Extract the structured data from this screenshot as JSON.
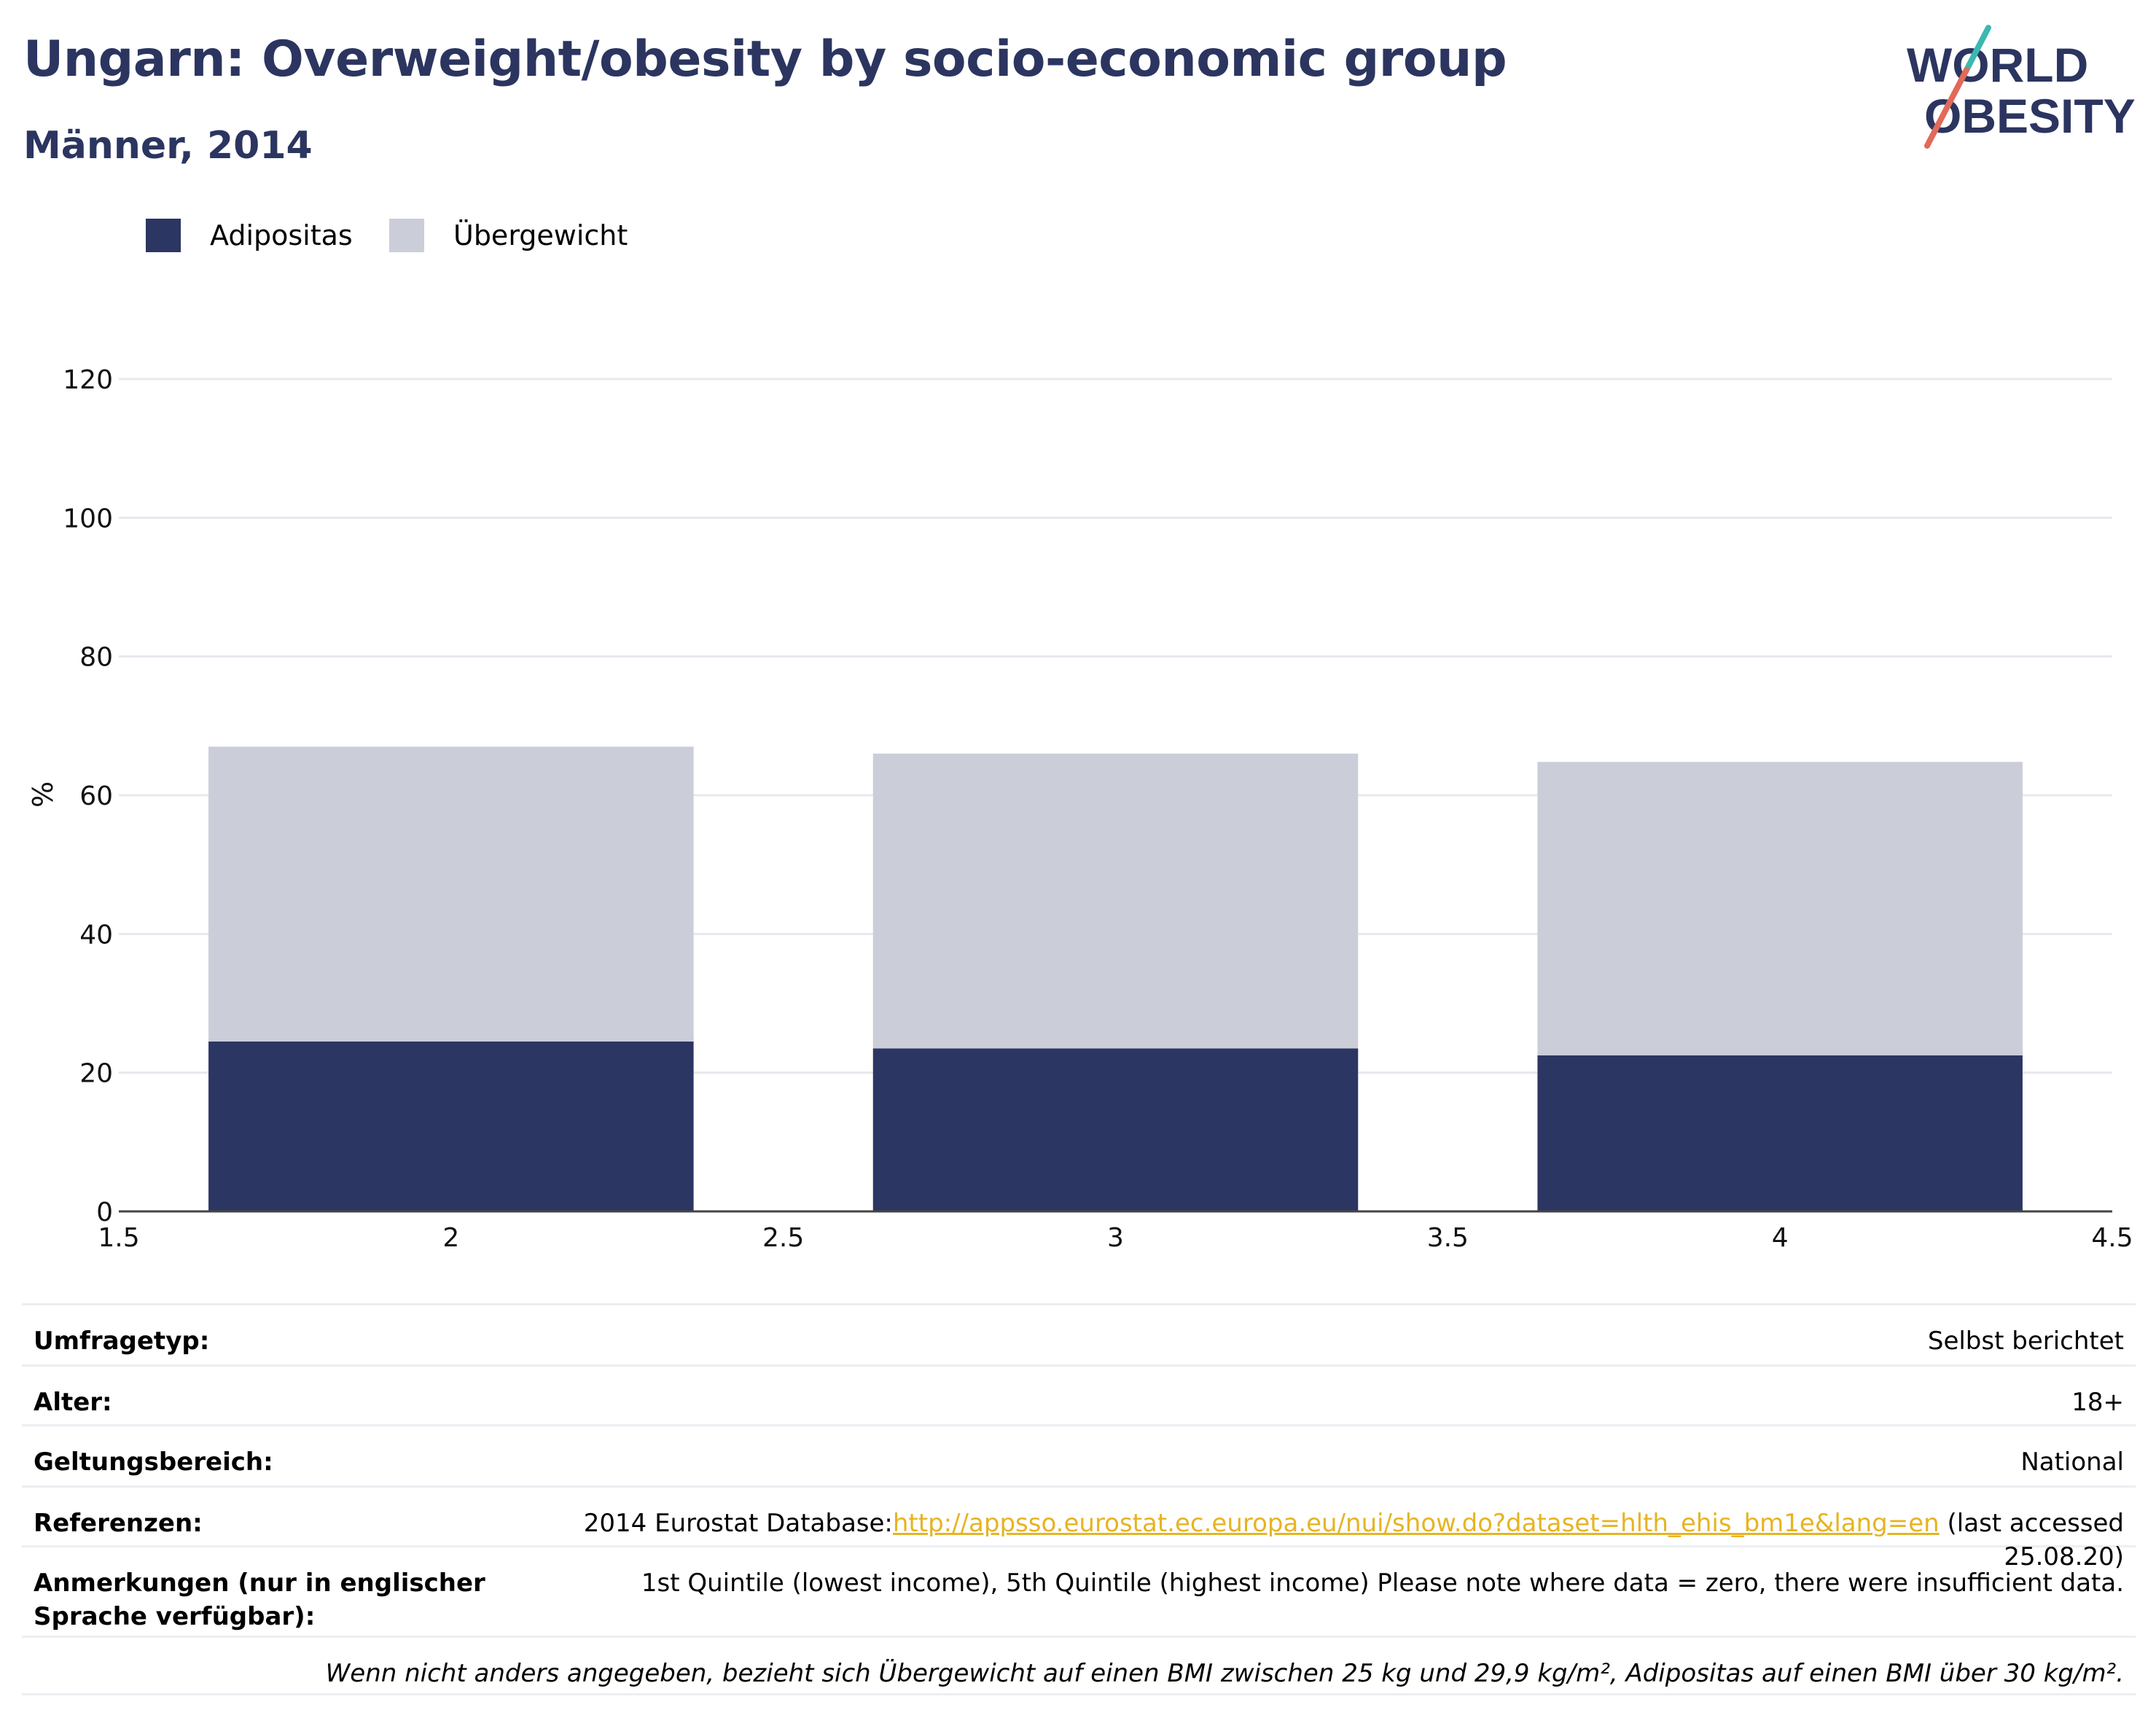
{
  "header": {
    "title": "Ungarn: Overweight/obesity by socio-economic group",
    "subtitle": "Männer, 2014"
  },
  "logo": {
    "line1": "WORLD",
    "line2": "OBESITY",
    "primary_color": "#2b3560",
    "accent_teal": "#3bb8b0",
    "accent_coral": "#e26a5a"
  },
  "legend": [
    {
      "label": "Adipositas",
      "color": "#2b3663"
    },
    {
      "label": "Übergewicht",
      "color": "#cbcdd8"
    }
  ],
  "chart_data": {
    "type": "bar",
    "stacked": true,
    "x": [
      2,
      3,
      4
    ],
    "series": [
      {
        "name": "Adipositas",
        "values": [
          24.5,
          23.5,
          22.5
        ],
        "color": "#2b3663"
      },
      {
        "name": "Übergewicht",
        "values": [
          42.5,
          42.5,
          42.3
        ],
        "color": "#cbcdd8"
      }
    ],
    "xlim": [
      1.5,
      4.5
    ],
    "ylim": [
      0,
      120
    ],
    "xticks": [
      "1.5",
      "2",
      "2.5",
      "3",
      "3.5",
      "4",
      "4.5"
    ],
    "yticks": [
      "0",
      "20",
      "40",
      "60",
      "80",
      "100",
      "120"
    ],
    "ylabel": "%",
    "xlabel": "",
    "grid": true,
    "legend_position": "top-left"
  },
  "info": {
    "survey_type": {
      "label": "Umfragetyp:",
      "value": "Selbst berichtet"
    },
    "age": {
      "label": "Alter:",
      "value": "18+"
    },
    "scope": {
      "label": "Geltungsbereich:",
      "value": "National"
    },
    "references": {
      "label": "Referenzen:",
      "prefix": "2014 Eurostat Database:",
      "link": "http://appsso.eurostat.ec.europa.eu/nui/show.do?dataset=hlth_ehis_bm1e&lang=en",
      "suffix": " (last accessed 25.08.20)"
    },
    "notes": {
      "label": "Anmerkungen (nur in englischer Sprache verfügbar):",
      "value": "1st Quintile (lowest income), 5th Quintile (highest income) Please note where data = zero, there were insufficient data."
    },
    "footnote": "Wenn nicht anders angegeben, bezieht sich Übergewicht auf einen BMI zwischen 25 kg und 29,9 kg/m², Adipositas auf einen BMI über 30 kg/m²."
  }
}
